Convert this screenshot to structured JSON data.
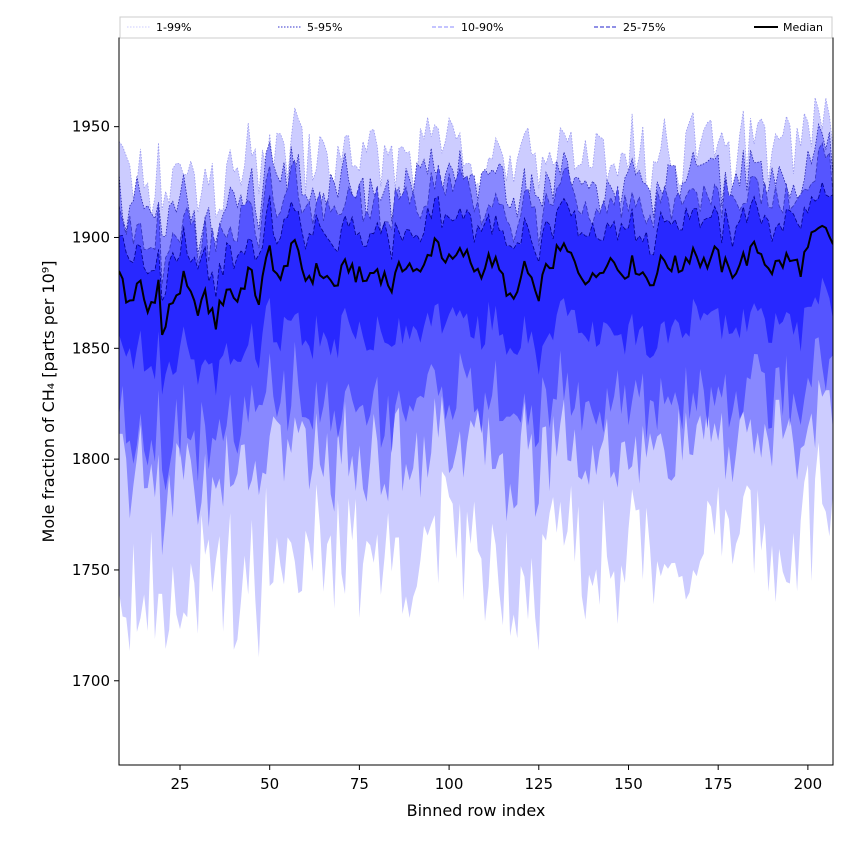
{
  "chart_data": {
    "type": "area",
    "xlabel": "Binned row index",
    "ylabel": "Mole fraction of CH₄ [parts per 10⁹]",
    "xlim": [
      8,
      207
    ],
    "ylim": [
      1662,
      1990
    ],
    "x_ticks": [
      25,
      50,
      75,
      100,
      125,
      150,
      175,
      200
    ],
    "y_ticks": [
      1700,
      1750,
      1800,
      1850,
      1900,
      1950
    ],
    "x_tick_labels": [
      "25",
      "50",
      "75",
      "100",
      "125",
      "150",
      "175",
      "200"
    ],
    "y_tick_labels": [
      "1700",
      "1750",
      "1800",
      "1850",
      "1900",
      "1950"
    ],
    "legend": {
      "placement": "top (above plot, single row)",
      "entries": [
        {
          "label": "1-99%",
          "style": "dotted",
          "color": "#ccccff"
        },
        {
          "label": "5-95%",
          "style": "dotted",
          "color": "#3333cc"
        },
        {
          "label": "10-90%",
          "style": "dashed",
          "color": "#8888ff"
        },
        {
          "label": "25-75%",
          "style": "dashed",
          "color": "#2222cc"
        },
        {
          "label": "Median",
          "style": "solid",
          "color": "#000000"
        }
      ]
    },
    "series_x_range": [
      8,
      207
    ],
    "median_keypoints": [
      [
        8,
        1888
      ],
      [
        10,
        1870
      ],
      [
        14,
        1878
      ],
      [
        16,
        1866
      ],
      [
        19,
        1880
      ],
      [
        20,
        1855
      ],
      [
        23,
        1872
      ],
      [
        26,
        1880
      ],
      [
        29,
        1868
      ],
      [
        32,
        1872
      ],
      [
        35,
        1862
      ],
      [
        38,
        1878
      ],
      [
        41,
        1872
      ],
      [
        44,
        1885
      ],
      [
        47,
        1872
      ],
      [
        50,
        1895
      ],
      [
        53,
        1878
      ],
      [
        56,
        1898
      ],
      [
        60,
        1882
      ],
      [
        64,
        1885
      ],
      [
        68,
        1878
      ],
      [
        72,
        1888
      ],
      [
        76,
        1880
      ],
      [
        80,
        1886
      ],
      [
        84,
        1878
      ],
      [
        88,
        1890
      ],
      [
        92,
        1882
      ],
      [
        96,
        1900
      ],
      [
        100,
        1888
      ],
      [
        104,
        1893
      ],
      [
        108,
        1885
      ],
      [
        112,
        1890
      ],
      [
        116,
        1878
      ],
      [
        118,
        1868
      ],
      [
        121,
        1888
      ],
      [
        124,
        1872
      ],
      [
        128,
        1888
      ],
      [
        132,
        1895
      ],
      [
        136,
        1886
      ],
      [
        140,
        1880
      ],
      [
        144,
        1892
      ],
      [
        148,
        1885
      ],
      [
        152,
        1888
      ],
      [
        156,
        1880
      ],
      [
        160,
        1890
      ],
      [
        164,
        1886
      ],
      [
        168,
        1895
      ],
      [
        171,
        1888
      ],
      [
        174,
        1892
      ],
      [
        178,
        1884
      ],
      [
        182,
        1890
      ],
      [
        186,
        1895
      ],
      [
        190,
        1886
      ],
      [
        194,
        1890
      ],
      [
        198,
        1887
      ],
      [
        201,
        1898
      ],
      [
        204,
        1903
      ],
      [
        207,
        1898
      ]
    ],
    "band_offsets": [
      {
        "name": "1-99%",
        "upper": 52,
        "lower": -128,
        "fill": "#ccccff"
      },
      {
        "name": "5-95%",
        "upper": 38,
        "lower": -82,
        "fill": "#8888ff"
      },
      {
        "name": "10-90%",
        "upper": 30,
        "lower": -60,
        "fill": "#5555ff"
      },
      {
        "name": "25-75%",
        "upper": 18,
        "lower": -28,
        "fill": "#2828ff"
      }
    ],
    "median_style": {
      "color": "#000000",
      "width": 2
    }
  }
}
